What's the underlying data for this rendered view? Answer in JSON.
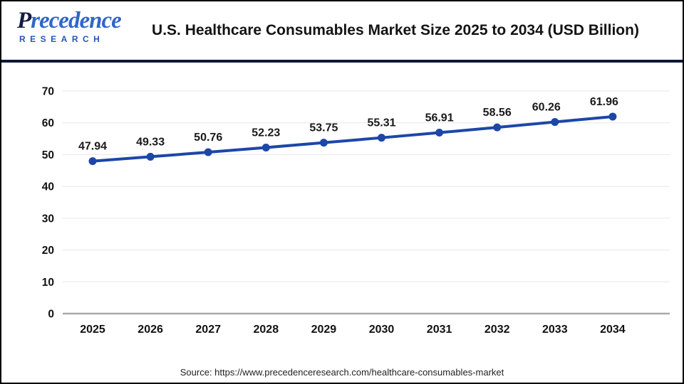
{
  "header": {
    "logo_line1": "Precedence",
    "logo_line2": "RESEARCH",
    "title": "U.S. Healthcare Consumables Market Size 2025 to 2034 (USD Billion)"
  },
  "chart_data": {
    "type": "line",
    "title": "U.S. Healthcare Consumables Market Size 2025 to 2034 (USD Billion)",
    "categories": [
      "2025",
      "2026",
      "2027",
      "2028",
      "2029",
      "2030",
      "2031",
      "2032",
      "2033",
      "2034"
    ],
    "series": [
      {
        "name": "U.S. Healthcare Consumables Market Size (USD Billion)",
        "values": [
          47.94,
          49.33,
          50.76,
          52.23,
          53.75,
          55.31,
          56.91,
          58.56,
          60.26,
          61.96
        ]
      }
    ],
    "xlabel": "",
    "ylabel": "",
    "ylim": [
      0,
      70
    ],
    "yticks": [
      0,
      10,
      20,
      30,
      40,
      50,
      60,
      70
    ],
    "grid": true,
    "legend": false,
    "data_labels": true,
    "line_color": "#1c47a8",
    "marker_color": "#1c47a8",
    "gridline_color": "#e7e7e7",
    "zero_axis_color": "#a9a9a9",
    "label_color": "#1a1a1a"
  },
  "footer": {
    "source": "Source: https://www.precedenceresearch.com/healthcare-consumables-market"
  }
}
